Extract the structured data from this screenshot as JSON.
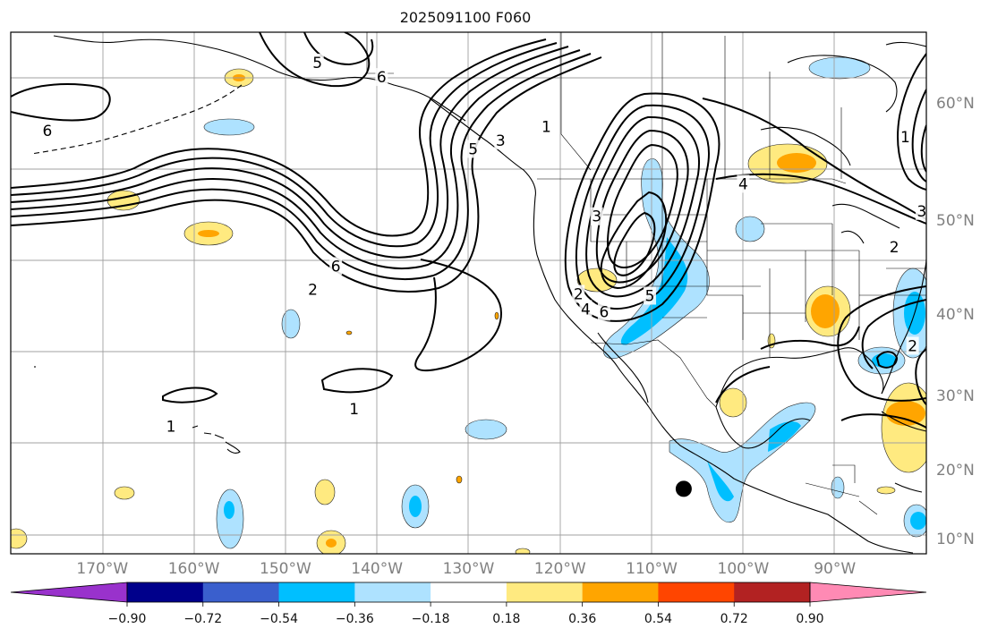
{
  "title": "2025091100 F060",
  "map": {
    "projection": "mercator",
    "lon_range": [
      -180,
      -80
    ],
    "lat_range": [
      8,
      65
    ],
    "gridlines": true,
    "lat_ticks": [
      {
        "value": 60,
        "label": "60°N"
      },
      {
        "value": 50,
        "label": "50°N"
      },
      {
        "value": 40,
        "label": "40°N"
      },
      {
        "value": 30,
        "label": "30°N"
      },
      {
        "value": 20,
        "label": "20°N"
      },
      {
        "value": 10,
        "label": "10°N"
      }
    ],
    "lon_ticks": [
      {
        "value": -170,
        "label": "170°W"
      },
      {
        "value": -160,
        "label": "160°W"
      },
      {
        "value": -150,
        "label": "150°W"
      },
      {
        "value": -140,
        "label": "140°W"
      },
      {
        "value": -130,
        "label": "130°W"
      },
      {
        "value": -120,
        "label": "120°W"
      },
      {
        "value": -110,
        "label": "110°W"
      },
      {
        "value": -100,
        "label": "100°W"
      },
      {
        "value": -90,
        "label": "90°W"
      }
    ],
    "contour_labels": [
      {
        "text": "6",
        "lon": -176,
        "lat": 58
      },
      {
        "text": "5",
        "lon": -146.5,
        "lat": 63
      },
      {
        "text": "6",
        "lon": -139.5,
        "lat": 62
      },
      {
        "text": "6",
        "lon": -144.5,
        "lat": 45.5
      },
      {
        "text": "2",
        "lon": -147,
        "lat": 43
      },
      {
        "text": "5",
        "lon": -129.5,
        "lat": 56.5
      },
      {
        "text": "3",
        "lon": -126.5,
        "lat": 57.2
      },
      {
        "text": "1",
        "lon": -121.5,
        "lat": 58.3
      },
      {
        "text": "1",
        "lon": -142.5,
        "lat": 28.5
      },
      {
        "text": "1",
        "lon": -162.5,
        "lat": 26.2
      },
      {
        "text": "3",
        "lon": -116,
        "lat": 50.5
      },
      {
        "text": "2",
        "lon": -118,
        "lat": 42.5
      },
      {
        "text": "4",
        "lon": -117.2,
        "lat": 40.8
      },
      {
        "text": "6",
        "lon": -115.2,
        "lat": 40.5
      },
      {
        "text": "5",
        "lon": -110.2,
        "lat": 42.3
      },
      {
        "text": "4",
        "lon": -100,
        "lat": 53.5
      },
      {
        "text": "1",
        "lon": -82.3,
        "lat": 57.5
      },
      {
        "text": "3",
        "lon": -80.5,
        "lat": 51
      },
      {
        "text": "2",
        "lon": -83.5,
        "lat": 47.5
      },
      {
        "text": "2",
        "lon": -81.5,
        "lat": 36.5
      }
    ],
    "marker": {
      "name": "black-dot",
      "lon": -106.5,
      "lat": 17.5
    }
  },
  "colorbar": {
    "colors": [
      "#9932cc",
      "#00008b",
      "#3a5fcd",
      "#00bfff",
      "#aee2ff",
      "#ffffff",
      "#ffea80",
      "#ffa500",
      "#ff4500",
      "#b22222",
      "#ff8ab4"
    ],
    "ticks": [
      {
        "value": -0.9,
        "label": "−0.90"
      },
      {
        "value": -0.72,
        "label": "−0.72"
      },
      {
        "value": -0.54,
        "label": "−0.54"
      },
      {
        "value": -0.36,
        "label": "−0.36"
      },
      {
        "value": -0.18,
        "label": "−0.18"
      },
      {
        "value": 0.18,
        "label": "0.18"
      },
      {
        "value": 0.36,
        "label": "0.36"
      },
      {
        "value": 0.54,
        "label": "0.54"
      },
      {
        "value": 0.72,
        "label": "0.72"
      },
      {
        "value": 0.9,
        "label": "0.90"
      }
    ]
  }
}
